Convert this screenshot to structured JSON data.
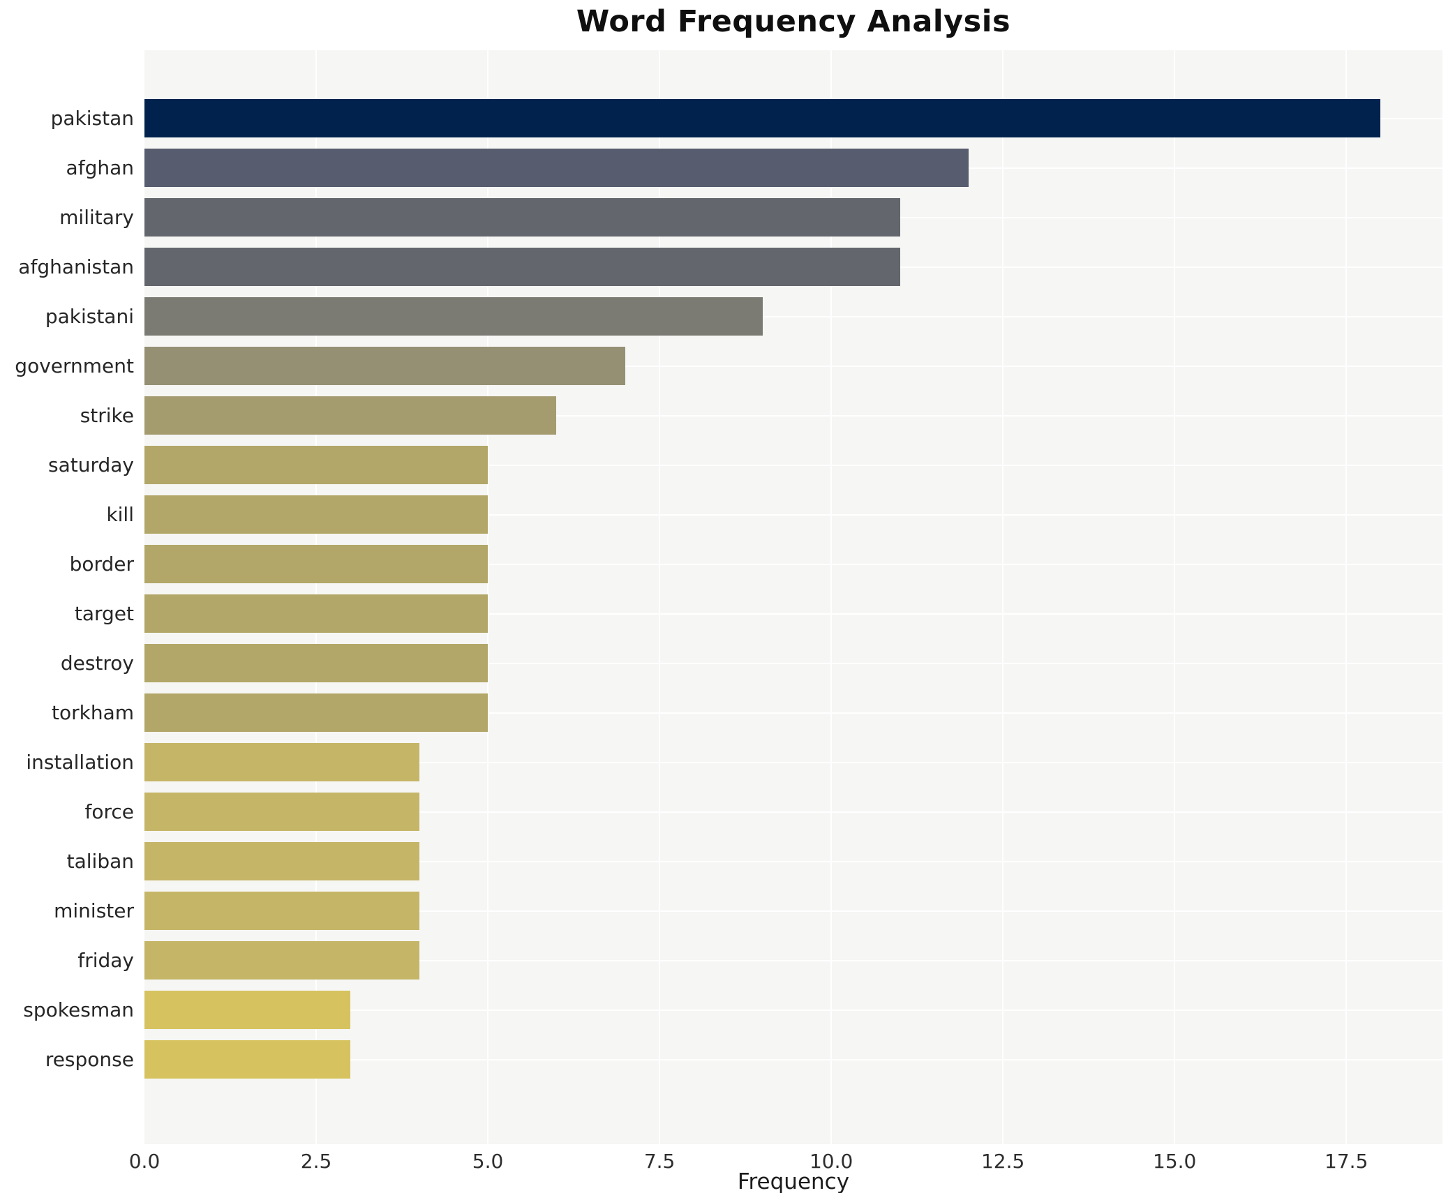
{
  "chart_data": {
    "type": "bar",
    "orientation": "horizontal",
    "title": "Word Frequency Analysis",
    "xlabel": "Frequency",
    "ylabel": "",
    "categories": [
      "pakistan",
      "afghan",
      "military",
      "afghanistan",
      "pakistani",
      "government",
      "strike",
      "saturday",
      "kill",
      "border",
      "target",
      "destroy",
      "torkham",
      "installation",
      "force",
      "taliban",
      "minister",
      "friday",
      "spokesman",
      "response"
    ],
    "values": [
      18,
      12,
      11,
      11,
      9,
      7,
      6,
      5,
      5,
      5,
      5,
      5,
      5,
      4,
      4,
      4,
      4,
      4,
      3,
      3
    ],
    "bar_colors": [
      "#02224e",
      "#575d6e",
      "#64666d",
      "#64666d",
      "#7b7b74",
      "#959074",
      "#a49b6f",
      "#b2a768",
      "#b2a768",
      "#b2a768",
      "#b2a768",
      "#b2a768",
      "#b2a768",
      "#c5b567",
      "#c5b567",
      "#c5b567",
      "#c5b567",
      "#c5b567",
      "#d6c35f",
      "#d6c35f"
    ],
    "xlim": [
      0,
      18.9
    ],
    "x_ticks": [
      0,
      2.5,
      5,
      7.5,
      10,
      12.5,
      15,
      17.5
    ],
    "x_tick_labels": [
      "0.0",
      "2.5",
      "5.0",
      "7.5",
      "10.0",
      "12.5",
      "15.0",
      "17.5"
    ],
    "grid": true,
    "legend": "none",
    "plot_background": "#f6f6f4",
    "grid_color": "#ffffff",
    "title_color": "#0f0f0f",
    "tick_label_color": "#2e2e2e"
  }
}
